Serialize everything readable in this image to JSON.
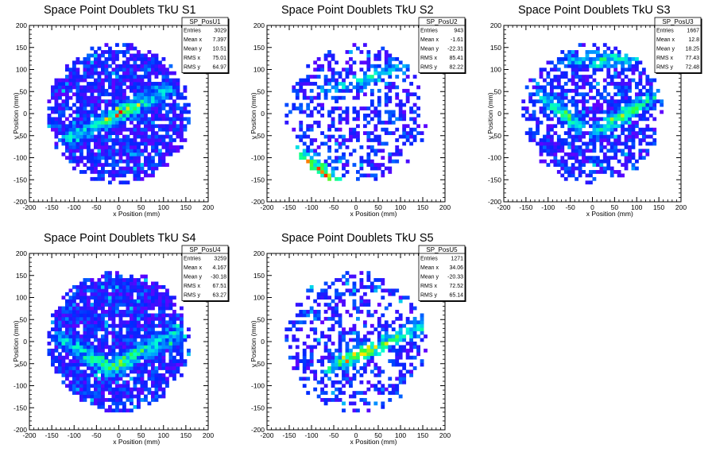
{
  "chart_data": [
    {
      "type": "heatmap",
      "title": "Space Point Doublets TkU S1",
      "xlabel": "x Position (mm)",
      "ylabel": "y Position (mm)",
      "xlim": [
        -200,
        200
      ],
      "ylim": [
        -200,
        200
      ],
      "xticks": [
        -200,
        -150,
        -100,
        -50,
        0,
        50,
        100,
        150,
        200
      ],
      "yticks": [
        -200,
        -150,
        -100,
        -50,
        0,
        50,
        100,
        150,
        200
      ],
      "occupancy_radius": 160,
      "fill_fraction": 0.82,
      "bands": [
        {
          "x1": -110,
          "y1": -55,
          "x2": 110,
          "y2": 55,
          "peak_x": 0,
          "peak_y": 0,
          "intensity": 0.9
        }
      ],
      "stats": {
        "name": "SP_PosU1",
        "rows": [
          [
            "Entries",
            "3029"
          ],
          [
            "Mean x",
            "7.397"
          ],
          [
            "Mean y",
            "10.51"
          ],
          [
            "RMS x",
            "75.01"
          ],
          [
            "RMS y",
            "64.97"
          ]
        ]
      }
    },
    {
      "type": "heatmap",
      "title": "Space Point Doublets TkU S2",
      "xlabel": "x Position (mm)",
      "ylabel": "y Position (mm)",
      "xlim": [
        -200,
        200
      ],
      "ylim": [
        -200,
        200
      ],
      "xticks": [
        -200,
        -150,
        -100,
        -50,
        0,
        50,
        100,
        150,
        200
      ],
      "yticks": [
        -200,
        -150,
        -100,
        -50,
        0,
        50,
        100,
        150,
        200
      ],
      "occupancy_radius": 160,
      "fill_fraction": 0.45,
      "bands": [
        {
          "x1": -140,
          "y1": -80,
          "x2": -40,
          "y2": -160,
          "peak_x": -70,
          "peak_y": -115,
          "intensity": 1.0
        },
        {
          "x1": -70,
          "y1": 50,
          "x2": 120,
          "y2": 110,
          "peak_x": 40,
          "peak_y": 80,
          "intensity": 0.6
        }
      ],
      "stats": {
        "name": "SP_PosU2",
        "rows": [
          [
            "Entries",
            "943"
          ],
          [
            "Mean x",
            "-1.61"
          ],
          [
            "Mean y",
            "-22.31"
          ],
          [
            "RMS x",
            "85.41"
          ],
          [
            "RMS y",
            "82.22"
          ]
        ]
      }
    },
    {
      "type": "heatmap",
      "title": "Space Point Doublets TkU S3",
      "xlabel": "x Position (mm)",
      "ylabel": "y Position (mm)",
      "xlim": [
        -200,
        200
      ],
      "ylim": [
        -200,
        200
      ],
      "xticks": [
        -200,
        -150,
        -100,
        -50,
        0,
        50,
        100,
        150,
        200
      ],
      "yticks": [
        -200,
        -150,
        -100,
        -50,
        0,
        50,
        100,
        150,
        200
      ],
      "occupancy_radius": 160,
      "fill_fraction": 0.62,
      "bands": [
        {
          "x1": -110,
          "y1": 40,
          "x2": -30,
          "y2": -30,
          "peak_x": -70,
          "peak_y": 10,
          "intensity": 0.7
        },
        {
          "x1": 10,
          "y1": -40,
          "x2": 140,
          "y2": 40,
          "peak_x": 80,
          "peak_y": 0,
          "intensity": 0.8
        },
        {
          "x1": -40,
          "y1": 120,
          "x2": 110,
          "y2": 130,
          "peak_x": 40,
          "peak_y": 125,
          "intensity": 0.6
        }
      ],
      "stats": {
        "name": "SP_PosU3",
        "rows": [
          [
            "Entries",
            "1667"
          ],
          [
            "Mean x",
            "12.8"
          ],
          [
            "Mean y",
            "18.25"
          ],
          [
            "RMS x",
            "77.43"
          ],
          [
            "RMS y",
            "72.48"
          ]
        ]
      }
    },
    {
      "type": "heatmap",
      "title": "Space Point Doublets TkU S4",
      "xlabel": "x Position (mm)",
      "ylabel": "y Position (mm)",
      "xlim": [
        -200,
        200
      ],
      "ylim": [
        -200,
        200
      ],
      "xticks": [
        -200,
        -150,
        -100,
        -50,
        0,
        50,
        100,
        150,
        200
      ],
      "yticks": [
        -200,
        -150,
        -100,
        -50,
        0,
        50,
        100,
        150,
        200
      ],
      "occupancy_radius": 160,
      "fill_fraction": 0.85,
      "bands": [
        {
          "x1": -130,
          "y1": 10,
          "x2": -20,
          "y2": -60,
          "peak_x": -30,
          "peak_y": -50,
          "intensity": 0.8
        },
        {
          "x1": -20,
          "y1": -60,
          "x2": 130,
          "y2": 20,
          "peak_x": 20,
          "peak_y": -70,
          "intensity": 0.9
        }
      ],
      "stats": {
        "name": "SP_PosU4",
        "rows": [
          [
            "Entries",
            "3259"
          ],
          [
            "Mean x",
            "4.167"
          ],
          [
            "Mean y",
            "-30.18"
          ],
          [
            "RMS x",
            "67.51"
          ],
          [
            "RMS y",
            "63.27"
          ]
        ]
      }
    },
    {
      "type": "heatmap",
      "title": "Space Point Doublets TkU S5",
      "xlabel": "x Position (mm)",
      "ylabel": "y Position (mm)",
      "xlim": [
        -200,
        200
      ],
      "ylim": [
        -200,
        200
      ],
      "xticks": [
        -200,
        -150,
        -100,
        -50,
        0,
        50,
        100,
        150,
        200
      ],
      "yticks": [
        -200,
        -150,
        -100,
        -50,
        0,
        50,
        100,
        150,
        200
      ],
      "occupancy_radius": 160,
      "fill_fraction": 0.42,
      "bands": [
        {
          "x1": -60,
          "y1": -60,
          "x2": 160,
          "y2": 40,
          "peak_x": 10,
          "peak_y": -20,
          "intensity": 1.0
        }
      ],
      "stats": {
        "name": "SP_PosU5",
        "rows": [
          [
            "Entries",
            "1271"
          ],
          [
            "Mean x",
            "34.06"
          ],
          [
            "Mean y",
            "-20.33"
          ],
          [
            "RMS x",
            "72.52"
          ],
          [
            "RMS y",
            "65.14"
          ]
        ]
      }
    }
  ]
}
